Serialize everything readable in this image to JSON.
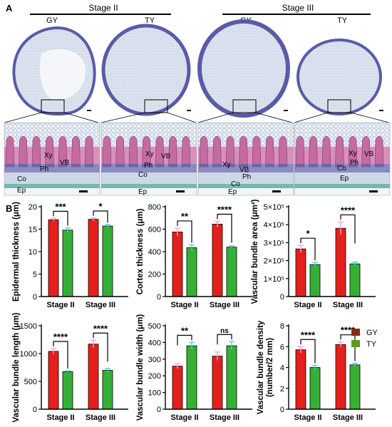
{
  "figure": {
    "panel_a_label": "A",
    "panel_b_label": "B",
    "stages": [
      "Stage II",
      "Stage III"
    ],
    "group_labels": [
      "GY",
      "TY",
      "GY",
      "TY"
    ],
    "tissue_labels": {
      "panel1": [
        "Xy",
        "VB",
        "Ph",
        "Co",
        "Ep"
      ],
      "panel2": [
        "Xy",
        "VB",
        "Ph",
        "Co",
        "Ep"
      ],
      "panel3": [
        "Xy",
        "VB",
        "Ph",
        "Co",
        "Ep"
      ],
      "panel4": [
        "Xy",
        "VB",
        "Ph",
        "Co",
        "Ep"
      ]
    },
    "colors": {
      "gy_bar": "#e4201c",
      "gy_error": "#ff9edc",
      "ty_bar": "#35b035",
      "ty_error": "#52c8e8",
      "legend_gy": "#8b2a12",
      "legend_ty": "#5a9a22",
      "stain_purple": "#5a5aa8",
      "stain_pink": "#d26aa6",
      "stain_teal": "#76b8b0",
      "tissue_bg": "#dfe6f2"
    },
    "legend": [
      {
        "label": "GY",
        "color": "#8b2a12"
      },
      {
        "label": "TY",
        "color": "#5a9a22"
      }
    ]
  },
  "chart_data": [
    {
      "type": "bar",
      "ylabel": "Epidermal thickness (μm)",
      "categories": [
        "Stage II",
        "Stage III"
      ],
      "ylim": [
        0,
        20
      ],
      "yticks": [
        0,
        5,
        10,
        15,
        20
      ],
      "yticklabels": [
        "0",
        "5",
        "10",
        "15",
        "20"
      ],
      "series": [
        {
          "name": "GY",
          "values": [
            17.1,
            17.2
          ],
          "errors": [
            0.3,
            0.3
          ]
        },
        {
          "name": "TY",
          "values": [
            14.8,
            15.7
          ],
          "errors": [
            0.5,
            0.3
          ]
        }
      ],
      "significance": [
        "***",
        "*"
      ]
    },
    {
      "type": "bar",
      "ylabel": "Cortex thickness (μm)",
      "categories": [
        "Stage II",
        "Stage III"
      ],
      "ylim": [
        0,
        800
      ],
      "yticks": [
        0,
        200,
        400,
        600,
        800
      ],
      "yticklabels": [
        "0",
        "200",
        "400",
        "600",
        "800"
      ],
      "series": [
        {
          "name": "GY",
          "values": [
            575,
            645
          ],
          "errors": [
            35,
            25
          ]
        },
        {
          "name": "TY",
          "values": [
            435,
            440
          ],
          "errors": [
            25,
            12
          ]
        }
      ],
      "significance": [
        "**",
        "****"
      ]
    },
    {
      "type": "bar",
      "ylabel": "Vascular bundle area (μm²)",
      "categories": [
        "Stage II",
        "Stage III"
      ],
      "ylim": [
        0,
        500000
      ],
      "yticks": [
        0,
        100000,
        200000,
        300000,
        400000,
        500000
      ],
      "yticklabels": [
        "0",
        "1×10⁵",
        "2×10⁵",
        "3×10⁵",
        "4×10⁵",
        "5×10⁵"
      ],
      "series": [
        {
          "name": "GY",
          "values": [
            265000,
            380000
          ],
          "errors": [
            20000,
            35000
          ]
        },
        {
          "name": "TY",
          "values": [
            178000,
            182000
          ],
          "errors": [
            12000,
            10000
          ]
        }
      ],
      "significance": [
        "*",
        "****"
      ]
    },
    {
      "type": "bar",
      "ylabel": "Vascular bundle length (μm)",
      "categories": [
        "Stage II",
        "Stage III"
      ],
      "ylim": [
        0,
        1500
      ],
      "yticks": [
        0,
        500,
        1000,
        1500
      ],
      "yticklabels": [
        "0",
        "500",
        "1000",
        "1500"
      ],
      "series": [
        {
          "name": "GY",
          "values": [
            1040,
            1170
          ],
          "errors": [
            50,
            70
          ]
        },
        {
          "name": "TY",
          "values": [
            675,
            700
          ],
          "errors": [
            15,
            30
          ]
        }
      ],
      "significance": [
        "****",
        "****"
      ]
    },
    {
      "type": "bar",
      "ylabel": "Vascular bundle width (μm)",
      "categories": [
        "Stage II",
        "Stage III"
      ],
      "ylim": [
        0,
        500
      ],
      "yticks": [
        0,
        100,
        200,
        300,
        400,
        500
      ],
      "yticklabels": [
        "0",
        "100",
        "200",
        "300",
        "400",
        "500"
      ],
      "series": [
        {
          "name": "GY",
          "values": [
            258,
            318
          ],
          "errors": [
            15,
            25
          ]
        },
        {
          "name": "TY",
          "values": [
            380,
            380
          ],
          "errors": [
            20,
            25
          ]
        }
      ],
      "significance": [
        "**",
        "ns"
      ]
    },
    {
      "type": "bar",
      "ylabel": "Vascular bundle density\n(number/2 mm)",
      "categories": [
        "Stage II",
        "Stage III"
      ],
      "ylim": [
        0,
        8
      ],
      "yticks": [
        0,
        2,
        4,
        6,
        8
      ],
      "yticklabels": [
        "0",
        "2",
        "4",
        "6",
        "8"
      ],
      "series": [
        {
          "name": "GY",
          "values": [
            5.7,
            6.2
          ],
          "errors": [
            0.3,
            0.25
          ]
        },
        {
          "name": "TY",
          "values": [
            4.0,
            4.25
          ],
          "errors": [
            0.2,
            0.15
          ]
        }
      ],
      "significance": [
        "****",
        "****"
      ]
    }
  ]
}
